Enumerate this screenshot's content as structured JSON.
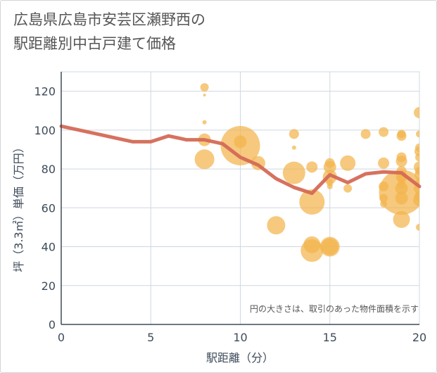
{
  "title_lines": [
    "広島県広島市安芸区瀬野西の",
    "駅距離別中古戸建て価格"
  ],
  "chart_data": {
    "type": "scatter",
    "xlabel": "駅距離（分）",
    "ylabel": "坪（3.3㎡）単価（万円）",
    "xlim": [
      0,
      20
    ],
    "ylim": [
      0,
      130
    ],
    "x_ticks": [
      0,
      5,
      10,
      15,
      20
    ],
    "y_ticks": [
      0,
      20,
      40,
      60,
      80,
      100,
      120
    ],
    "grid": true,
    "note": "円の大きさは、取引のあった物件面積を示す",
    "colors": {
      "bubble": "#f2b44c",
      "line": "#d46a56",
      "grid": "#cfd8e0",
      "axis": "#3e4b5a"
    },
    "line": {
      "x": [
        0,
        1,
        2,
        3,
        4,
        5,
        6,
        7,
        8,
        9,
        10,
        11,
        12,
        13,
        14,
        15,
        16,
        17,
        18,
        19,
        20
      ],
      "y": [
        102,
        100,
        98,
        96,
        94,
        94,
        97,
        95,
        95,
        93,
        86,
        82,
        75,
        70.5,
        67.5,
        77,
        73,
        77.5,
        78.5,
        78,
        71
      ]
    },
    "bubbles": [
      {
        "x": 8,
        "y": 122,
        "size": 6
      },
      {
        "x": 8,
        "y": 118,
        "size": 2
      },
      {
        "x": 8,
        "y": 104,
        "size": 3
      },
      {
        "x": 8,
        "y": 95,
        "size": 9
      },
      {
        "x": 8,
        "y": 85,
        "size": 14
      },
      {
        "x": 10,
        "y": 92,
        "size": 28
      },
      {
        "x": 10,
        "y": 94,
        "size": 9
      },
      {
        "x": 11,
        "y": 83,
        "size": 10
      },
      {
        "x": 12,
        "y": 51,
        "size": 13
      },
      {
        "x": 13,
        "y": 98,
        "size": 7
      },
      {
        "x": 13,
        "y": 91,
        "size": 3
      },
      {
        "x": 13,
        "y": 78,
        "size": 16
      },
      {
        "x": 14,
        "y": 81,
        "size": 8
      },
      {
        "x": 14,
        "y": 63,
        "size": 18
      },
      {
        "x": 14,
        "y": 41,
        "size": 12
      },
      {
        "x": 14,
        "y": 38,
        "size": 16
      },
      {
        "x": 15,
        "y": 83,
        "size": 7
      },
      {
        "x": 15,
        "y": 81,
        "size": 9
      },
      {
        "x": 15,
        "y": 76,
        "size": 10
      },
      {
        "x": 15,
        "y": 73,
        "size": 5
      },
      {
        "x": 15,
        "y": 71,
        "size": 4
      },
      {
        "x": 15,
        "y": 40,
        "size": 14
      },
      {
        "x": 15,
        "y": 40,
        "size": 12
      },
      {
        "x": 16,
        "y": 83,
        "size": 11
      },
      {
        "x": 16,
        "y": 70,
        "size": 6
      },
      {
        "x": 17,
        "y": 98,
        "size": 7
      },
      {
        "x": 18,
        "y": 99,
        "size": 7
      },
      {
        "x": 18,
        "y": 83,
        "size": 8
      },
      {
        "x": 18,
        "y": 71,
        "size": 7
      },
      {
        "x": 18,
        "y": 65,
        "size": 6
      },
      {
        "x": 18,
        "y": 62,
        "size": 5
      },
      {
        "x": 19,
        "y": 98,
        "size": 6
      },
      {
        "x": 19,
        "y": 97,
        "size": 7
      },
      {
        "x": 19,
        "y": 86,
        "size": 7
      },
      {
        "x": 19,
        "y": 84,
        "size": 8
      },
      {
        "x": 19,
        "y": 79,
        "size": 7
      },
      {
        "x": 19,
        "y": 76,
        "size": 8
      },
      {
        "x": 19,
        "y": 75,
        "size": 6
      },
      {
        "x": 19,
        "y": 72,
        "size": 6
      },
      {
        "x": 19,
        "y": 70,
        "size": 9
      },
      {
        "x": 19,
        "y": 68,
        "size": 32
      },
      {
        "x": 19,
        "y": 65,
        "size": 9
      },
      {
        "x": 19,
        "y": 54,
        "size": 12
      },
      {
        "x": 20,
        "y": 109,
        "size": 8
      },
      {
        "x": 20,
        "y": 98,
        "size": 5
      },
      {
        "x": 20,
        "y": 91,
        "size": 6
      },
      {
        "x": 20,
        "y": 89,
        "size": 7
      },
      {
        "x": 20,
        "y": 86,
        "size": 6
      },
      {
        "x": 20,
        "y": 81,
        "size": 8
      },
      {
        "x": 20,
        "y": 79,
        "size": 6
      },
      {
        "x": 20,
        "y": 77,
        "size": 7
      },
      {
        "x": 20,
        "y": 73,
        "size": 6
      },
      {
        "x": 20,
        "y": 70,
        "size": 8
      },
      {
        "x": 20,
        "y": 66,
        "size": 7
      },
      {
        "x": 20,
        "y": 64,
        "size": 9
      },
      {
        "x": 20,
        "y": 50,
        "size": 5
      }
    ]
  }
}
